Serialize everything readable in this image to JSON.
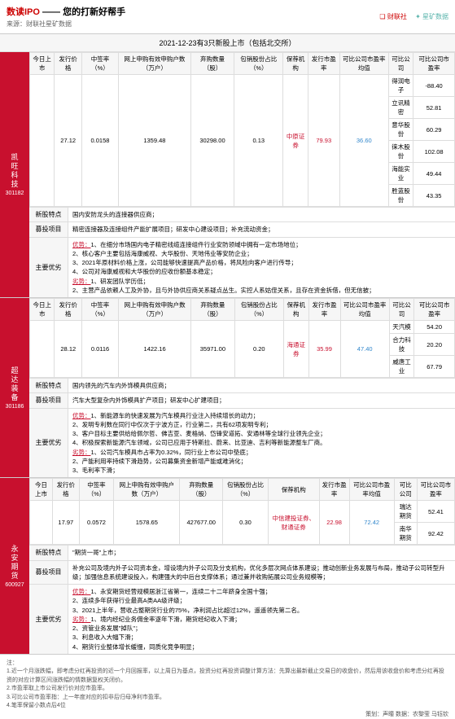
{
  "header": {
    "title_red": "数读IPO",
    "title_rest": " —— 您的打新好帮手",
    "source": "来源：财联社星矿数据",
    "logo1": "❏ 财联社",
    "logo2": "✦ 星矿数据"
  },
  "title_bar": "2021-12-23有3只新股上市（包括北交所）",
  "table_headers": [
    "今日上市",
    "发行价格",
    "中签率（%）",
    "网上申购有效申购户数（万户）",
    "弃购数量（股）",
    "包销股份占比（%）",
    "保荐机构",
    "发行市盈率",
    "可比公司市盈率均值",
    "可比公司",
    "可比公司市盈率"
  ],
  "stocks": [
    {
      "name": "凯旺科技",
      "code": "301182",
      "row": [
        "27.12",
        "0.0158",
        "1359.48",
        "30298.00",
        "0.13",
        "中原证券",
        "79.93",
        "36.60"
      ],
      "comps": [
        [
          "得润电子",
          "-88.40"
        ],
        [
          "立讯精密",
          "52.81"
        ],
        [
          "意华股份",
          "60.29"
        ],
        [
          "徕木股份",
          "102.08"
        ],
        [
          "海能实业",
          "49.44"
        ],
        [
          "胜蓝股份",
          "43.35"
        ]
      ],
      "features": "国内安防龙头的连接器供应商；",
      "project": "精密连接器及连接组件产能扩展项目；研发中心建设项目；补充流动资金；",
      "adv_label": "优势：",
      "adv": "1、在细分市场国内电子精密线缆连接组件行业安防领域中拥有一定市场地位；\n2、核心客户主要包括海康威视、大华股份、天地伟业等安防企业；\n3、2021年原材料价格上涨，公司能够快速提高产品价格，将风险向客户进行传导；\n4、公司对海康威视和大华股份的应收份额基本稳定；",
      "dis_label": "劣势：",
      "dis": "1、研发团队学历低；\n2、主营产品依赖人工及外协，且与外协供应商关系疑点丛生。实控人系姑侄关系，且存在资金拆借，但无信披；"
    },
    {
      "name": "超达装备",
      "code": "301186",
      "row": [
        "28.12",
        "0.0116",
        "1422.16",
        "35971.00",
        "0.20",
        "海通证券",
        "35.99",
        "47.40"
      ],
      "comps": [
        [
          "天汽模",
          "54.20"
        ],
        [
          "合力科技",
          "20.20"
        ],
        [
          "威唐工业",
          "67.79"
        ]
      ],
      "features": "国内领先的汽车内外饰模具供应商；",
      "project": "汽车大型复杂内外饰模具扩产项目；研发中心扩建项目；",
      "adv_label": "优势：",
      "adv": "1、新能源车的快速发展为汽车模具行业注入持续增长的动力；\n2、发明专利数在同行中仅次于宁波方正，行业第二，共有62项发明专利；\n3、客户目标主要供给给佩尔哲、佛吉亚、麦格纳、岱锋安道拓、安通林等全球行业领先企业；\n4、积极探索新能源汽车领域，公司已应用于特斯拉、蔚来、比亚迪、吉利等新能源整车厂商。",
      "dis_label": "劣势：",
      "dis": "1、公司汽车模具市占率为0.32%，同行业上市公司中垫底；\n2、产能利用率持续下滑趋势，公司募集资金新增产能或难消化；\n3、毛利率下滑；"
    },
    {
      "name": "永安期货",
      "code": "600927",
      "row": [
        "17.97",
        "0.0572",
        "1578.65",
        "427677.00",
        "0.30",
        "中信建投证券、财通证券",
        "22.98",
        "72.42"
      ],
      "comps": [
        [
          "瑞达期货",
          "52.41"
        ],
        [
          "南华期货",
          "92.42"
        ]
      ],
      "features": "\"期货一哥\"上市；",
      "project": "补充公司及境内外子公司资本金，增设境内外子公司及分支机构，优化多层次网点体系建设；推动创新业务发展与布局，推动子公司转型升级；加强信息系统建设投入，构建强大的中后台支撑体系；通过兼并收购拓展公司业务规模等；",
      "adv_label": "优势：",
      "adv": "1、永安期货经营规模居浙江省第一，连续二十二年跻身全国十强；\n2、连续多年获得行业最高A类AA级评级；\n3、2021上半年，营收占整期货行业的75%，净利润占比超过12%，遥遥领先第二名。",
      "dis_label": "劣势：",
      "dis": "1、境内经纪业务佣金率逐年下滑，期货经纪收入下滑；\n2、资管业务发展\"掉队\"；\n3、利息收入大幅下滑；\n4、期货行业整体增长缓慢，同质化竞争明显；"
    }
  ],
  "footer": {
    "notes": "注：\n1.近一个月涨跌幅，即考虑分红再投资的近一个月回报率，以上周日为基点，投资分红再投资调整计算方法：先算出最新截止交易日的收盘价，然后用该收盘价和考虑分红再投资的对应计算区间涨跌幅的情数据复权关闭价。\n2.市盈率取上市公司发行价对应市盈率。\n3.可比公司市盈率指：上一年度对应的扣非后归母净利市盈率。\n4.笔率保留小数点后4位",
    "credit": "策划：声瞳  数据：农黎莹 马钰钦"
  }
}
